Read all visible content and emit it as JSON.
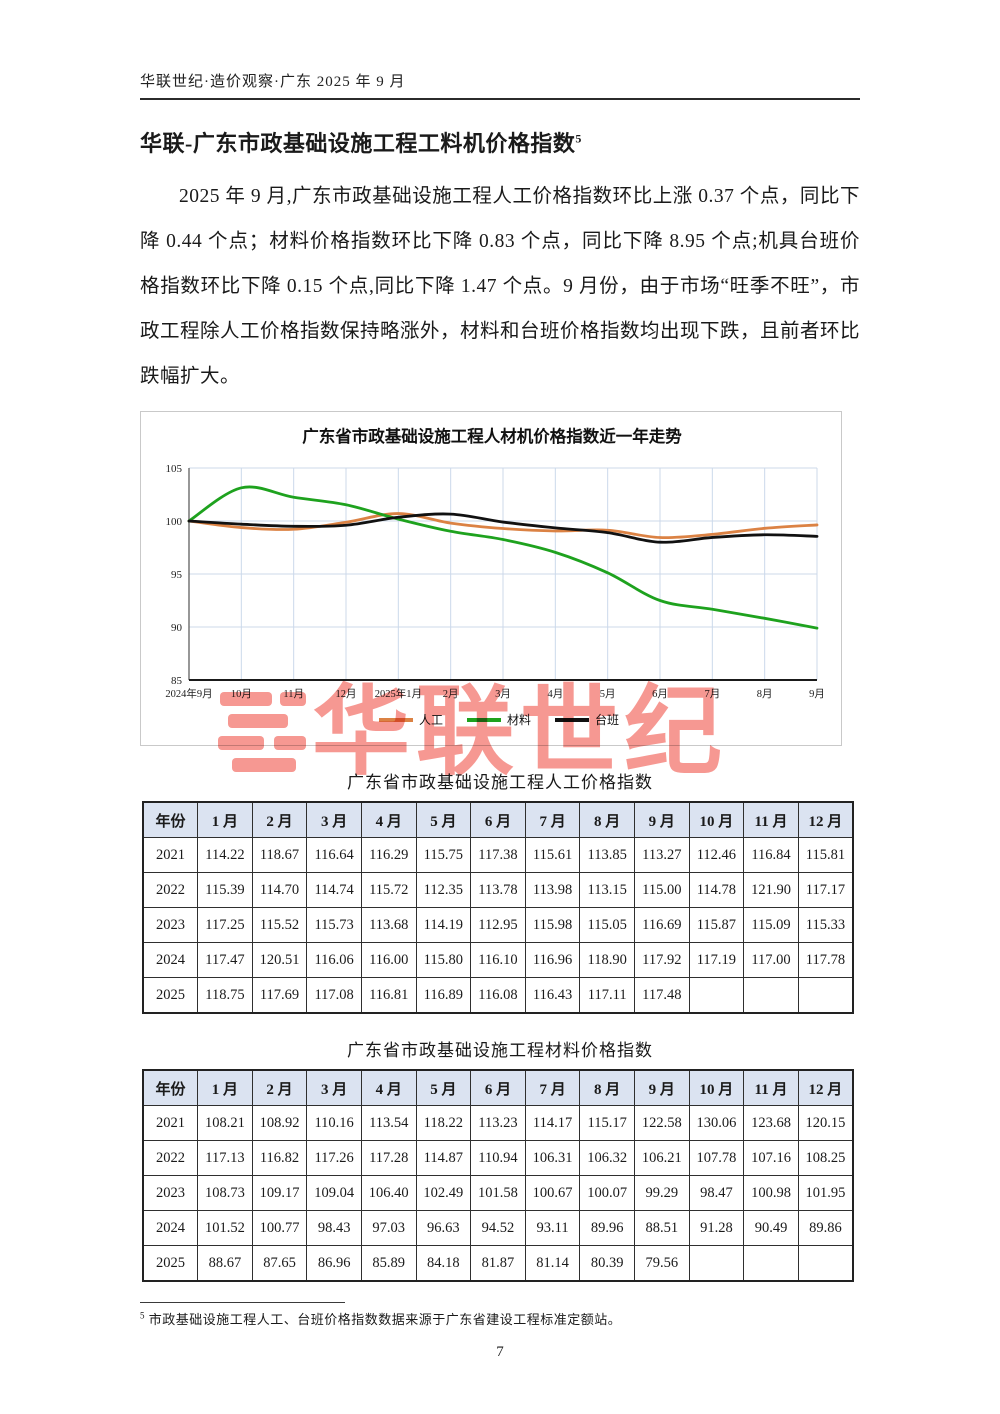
{
  "page": {
    "header": "华联世纪·造价观察·广东 2025 年 9 月",
    "title": "华联-广东市政基础设施工程工料机价格指数",
    "title_footnote_ref": "5",
    "paragraph": "2025 年 9 月,广东市政基础设施工程人工价格指数环比上涨 0.37 个点，同比下降 0.44 个点；材料价格指数环比下降 0.83 个点，同比下降 8.95 个点;机具台班价格指数环比下降 0.15 个点,同比下降 1.47 个点。9 月份，由于市场“旺季不旺”，市政工程除人工价格指数保持略涨外，材料和台班价格指数均出现下跌，且前者环比跌幅扩大。",
    "watermark": "华联世纪",
    "footnote_ref": "5",
    "footnote": "市政基础设施工程人工、台班价格指数数据来源于广东省建设工程标准定额站。",
    "page_number": "7"
  },
  "chart_data": {
    "type": "line",
    "title": "广东省市政基础设施工程人材机价格指数近一年走势",
    "x": [
      "2024年9月",
      "10月",
      "11月",
      "12月",
      "2025年1月",
      "2月",
      "3月",
      "4月",
      "5月",
      "6月",
      "7月",
      "8月",
      "9月"
    ],
    "ylim": [
      85,
      105
    ],
    "yticks": [
      85,
      90,
      95,
      100,
      105
    ],
    "grid": true,
    "legend_position": "bottom",
    "series": [
      {
        "name": "人工",
        "color": "#DB8244",
        "values": [
          100,
          99.38,
          99.22,
          99.88,
          100.7,
          99.8,
          99.29,
          99.06,
          99.13,
          98.44,
          98.74,
          99.31,
          99.63
        ]
      },
      {
        "name": "材料",
        "color": "#1EA21E",
        "values": [
          100,
          103.13,
          102.24,
          101.53,
          100.18,
          99.03,
          98.25,
          97.04,
          95.11,
          92.5,
          91.67,
          90.82,
          89.89
        ]
      },
      {
        "name": "台班",
        "color": "#111111",
        "values": [
          100,
          99.7,
          99.5,
          99.6,
          100.35,
          100.65,
          99.9,
          99.35,
          98.9,
          98.0,
          98.45,
          98.7,
          98.55
        ]
      }
    ]
  },
  "tables": [
    {
      "title": "广东省市政基础设施工程人工价格指数",
      "headers": [
        "年份",
        "1 月",
        "2 月",
        "3 月",
        "4 月",
        "5 月",
        "6 月",
        "7 月",
        "8 月",
        "9 月",
        "10 月",
        "11 月",
        "12 月"
      ],
      "rows": [
        [
          "2021",
          "114.22",
          "118.67",
          "116.64",
          "116.29",
          "115.75",
          "117.38",
          "115.61",
          "113.85",
          "113.27",
          "112.46",
          "116.84",
          "115.81"
        ],
        [
          "2022",
          "115.39",
          "114.70",
          "114.74",
          "115.72",
          "112.35",
          "113.78",
          "113.98",
          "113.15",
          "115.00",
          "114.78",
          "121.90",
          "117.17"
        ],
        [
          "2023",
          "117.25",
          "115.52",
          "115.73",
          "113.68",
          "114.19",
          "112.95",
          "115.98",
          "115.05",
          "116.69",
          "115.87",
          "115.09",
          "115.33"
        ],
        [
          "2024",
          "117.47",
          "120.51",
          "116.06",
          "116.00",
          "115.80",
          "116.10",
          "116.96",
          "118.90",
          "117.92",
          "117.19",
          "117.00",
          "117.78"
        ],
        [
          "2025",
          "118.75",
          "117.69",
          "117.08",
          "116.81",
          "116.89",
          "116.08",
          "116.43",
          "117.11",
          "117.48",
          "",
          "",
          ""
        ]
      ]
    },
    {
      "title": "广东省市政基础设施工程材料价格指数",
      "headers": [
        "年份",
        "1 月",
        "2 月",
        "3 月",
        "4 月",
        "5 月",
        "6 月",
        "7 月",
        "8 月",
        "9 月",
        "10 月",
        "11 月",
        "12 月"
      ],
      "rows": [
        [
          "2021",
          "108.21",
          "108.92",
          "110.16",
          "113.54",
          "118.22",
          "113.23",
          "114.17",
          "115.17",
          "122.58",
          "130.06",
          "123.68",
          "120.15"
        ],
        [
          "2022",
          "117.13",
          "116.82",
          "117.26",
          "117.28",
          "114.87",
          "110.94",
          "106.31",
          "106.32",
          "106.21",
          "107.78",
          "107.16",
          "108.25"
        ],
        [
          "2023",
          "108.73",
          "109.17",
          "109.04",
          "106.40",
          "102.49",
          "101.58",
          "100.67",
          "100.07",
          "99.29",
          "98.47",
          "100.98",
          "101.95"
        ],
        [
          "2024",
          "101.52",
          "100.77",
          "98.43",
          "97.03",
          "96.63",
          "94.52",
          "93.11",
          "89.96",
          "88.51",
          "91.28",
          "90.49",
          "89.86"
        ],
        [
          "2025",
          "88.67",
          "87.65",
          "86.96",
          "85.89",
          "84.18",
          "81.87",
          "81.14",
          "80.39",
          "79.56",
          "",
          "",
          ""
        ]
      ]
    }
  ],
  "colors": {
    "labor_line": "#DB8244",
    "material_line": "#1EA21E",
    "machine_line": "#111111",
    "grid_line": "#ccd9ea",
    "table_header_bg": "#dbe3f1",
    "watermark_red": "#ef4337"
  }
}
